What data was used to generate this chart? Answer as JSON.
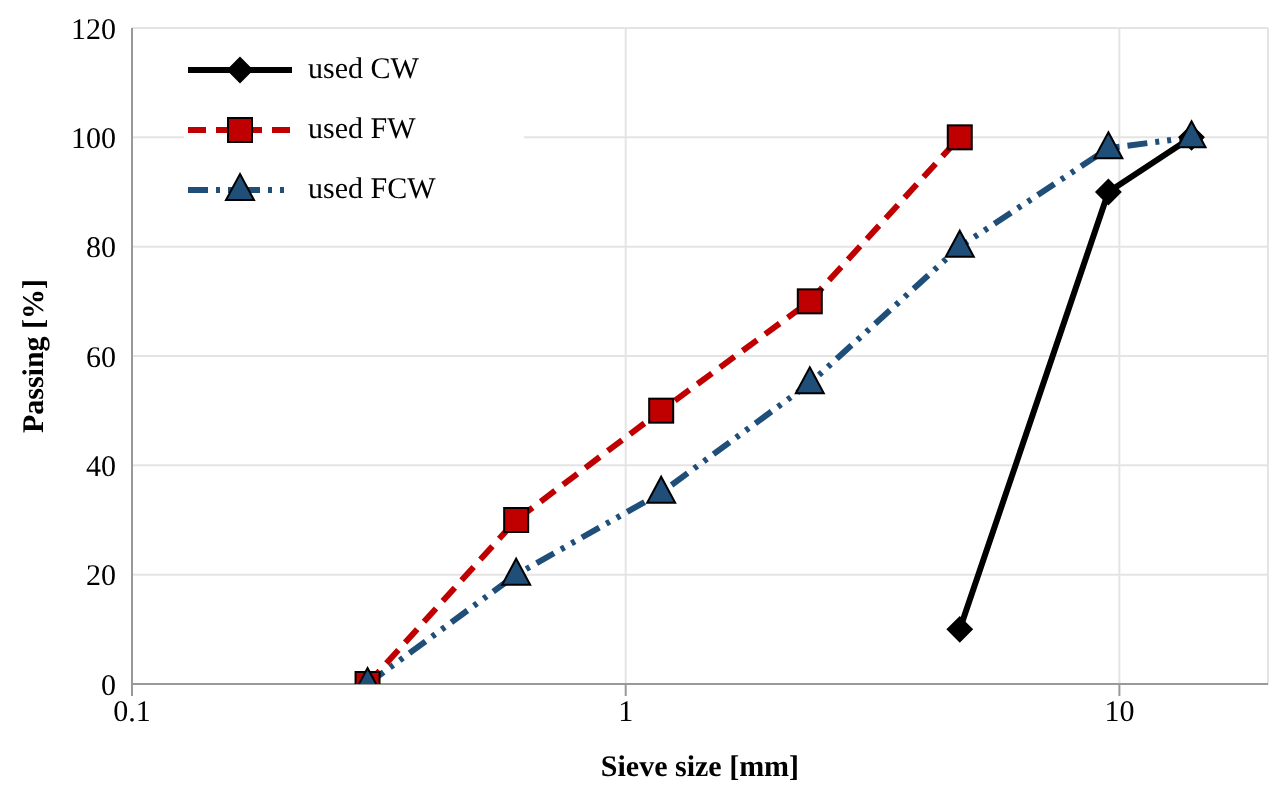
{
  "chart_data": {
    "type": "line",
    "xlabel": "Sieve size [mm]",
    "ylabel": "Passing [%]",
    "log": "x",
    "xlim": [
      0.1,
      20
    ],
    "xticks": [
      0.1,
      1,
      10
    ],
    "ylim": [
      0,
      120
    ],
    "yticks": [
      0,
      20,
      40,
      60,
      80,
      100,
      120
    ],
    "grid": true,
    "legend": "top left",
    "series": [
      {
        "name": "used CW",
        "color": "#000000",
        "marker": "diamond",
        "line_style": "solid",
        "x": [
          4.75,
          9.5,
          14
        ],
        "values": [
          10,
          90,
          100
        ]
      },
      {
        "name": "used FW",
        "color": "#c00000",
        "marker": "square",
        "line_style": "dashed",
        "x": [
          0.3,
          0.6,
          1.18,
          2.36,
          4.75
        ],
        "values": [
          0,
          30,
          50,
          70,
          100
        ]
      },
      {
        "name": "used FCW",
        "color": "#1f4e79",
        "marker": "triangle",
        "line_style": "dotted",
        "x": [
          0.3,
          0.6,
          1.18,
          2.36,
          4.75,
          9.5,
          14
        ],
        "values": [
          0,
          20,
          35,
          55,
          80,
          98,
          100
        ]
      }
    ]
  }
}
